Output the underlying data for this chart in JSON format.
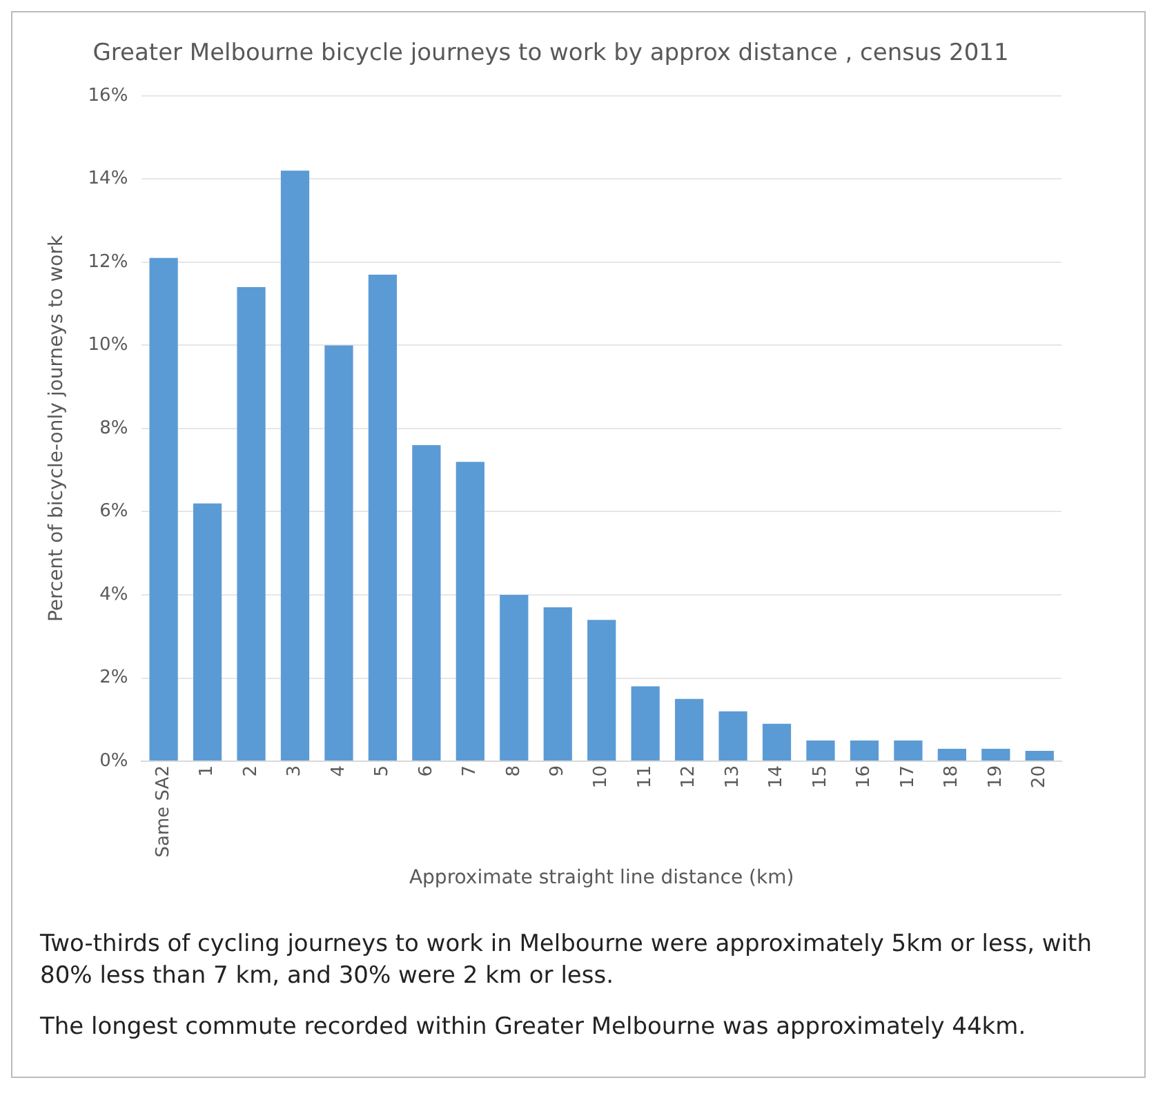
{
  "chart_data": {
    "type": "bar",
    "title": "Greater Melbourne bicycle journeys to work by approx distance , census 2011",
    "xlabel": "Approximate straight line distance (km)",
    "ylabel": "Percent of bicycle-only journeys to work",
    "categories": [
      "Same SA2",
      "1",
      "2",
      "3",
      "4",
      "5",
      "6",
      "7",
      "8",
      "9",
      "10",
      "11",
      "12",
      "13",
      "14",
      "15",
      "16",
      "17",
      "18",
      "19",
      "20"
    ],
    "values": [
      12.1,
      6.2,
      11.4,
      14.2,
      10.0,
      11.7,
      7.6,
      7.2,
      4.0,
      3.7,
      3.4,
      1.8,
      1.5,
      1.2,
      0.9,
      0.5,
      0.5,
      0.5,
      0.3,
      0.3,
      0.25
    ],
    "color": "#5b9bd5",
    "ylim": [
      0,
      16
    ],
    "yticks": [
      {
        "value": 0,
        "label": "0%"
      },
      {
        "value": 2,
        "label": "2%"
      },
      {
        "value": 4,
        "label": "4%"
      },
      {
        "value": 6,
        "label": "6%"
      },
      {
        "value": 8,
        "label": "8%"
      },
      {
        "value": 10,
        "label": "10%"
      },
      {
        "value": 12,
        "label": "12%"
      },
      {
        "value": 14,
        "label": "14%"
      },
      {
        "value": 16,
        "label": "16%"
      }
    ],
    "grid": "y",
    "legend": false,
    "annotations": [
      "Two-thirds of cycling journeys to work in Melbourne were approximately 5km or less, with 80% less than 7 km, and 30% were 2 km or less.",
      "The longest commute recorded within Greater Melbourne was approximately 44km."
    ]
  }
}
